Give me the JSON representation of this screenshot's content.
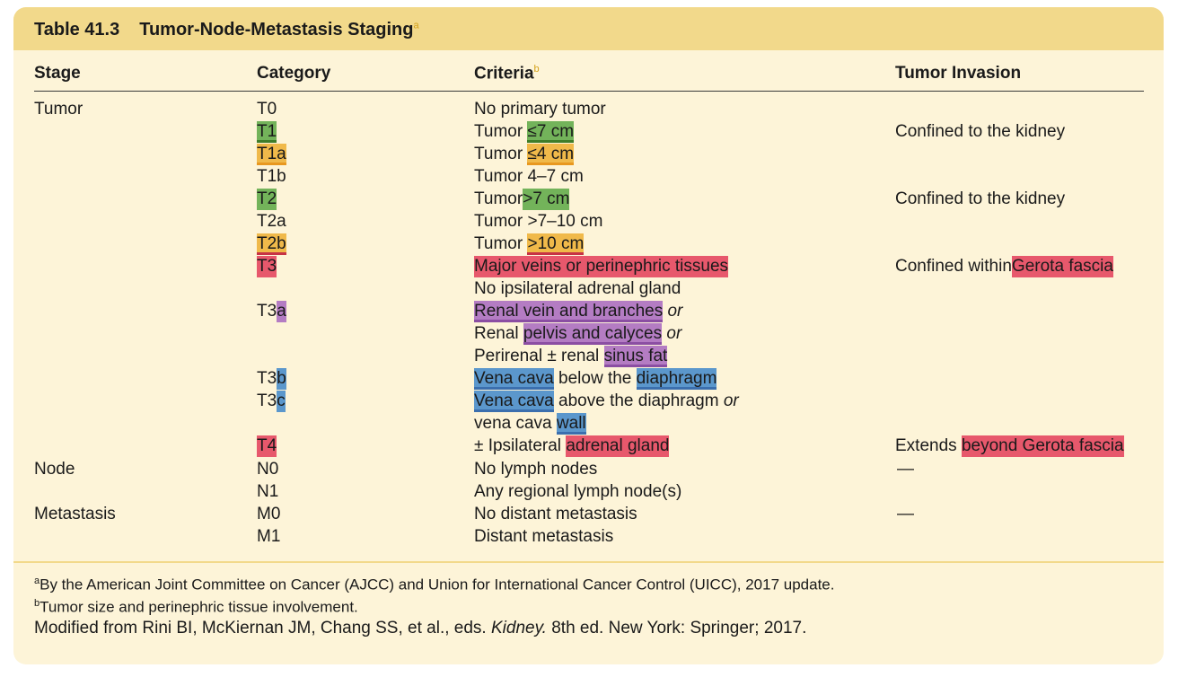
{
  "table_title": {
    "number": "Table 41.3",
    "text": "Tumor-Node-Metastasis Staging",
    "sup": "a"
  },
  "headers": {
    "stage": "Stage",
    "category": "Category",
    "criteria": "Criteria",
    "criteria_sup": "b",
    "invasion": "Tumor Invasion"
  },
  "rows": {
    "r0": {
      "stage": "Tumor",
      "cat": "T0",
      "crit": "No primary tumor"
    },
    "r1": {
      "cat": "T1",
      "crit_pre": "Tumor ",
      "crit_hl": "≤7 cm",
      "inv": "Confined to the kidney"
    },
    "r2": {
      "cat": "T1a",
      "crit_pre": "Tumor ",
      "crit_hl": "≤4 cm"
    },
    "r3": {
      "cat": "T1b",
      "crit": "Tumor 4–7 cm"
    },
    "r4": {
      "cat": "T2",
      "crit_pre": "Tumor",
      "crit_hl": ">7 cm",
      "inv": "Confined to the kidney"
    },
    "r5": {
      "cat": "T2a",
      "crit": "Tumor >7–10 cm"
    },
    "r6": {
      "cat": "T2b",
      "crit_pre": "Tumor ",
      "crit_hl": ">10 cm"
    },
    "r7": {
      "cat": "T3",
      "crit_hl": "Major veins or perinephric tissues",
      "inv_pre": "Confined within",
      "inv_hl": "Gerota fascia"
    },
    "r8": {
      "crit": "No ipsilateral adrenal gland"
    },
    "r9": {
      "cat_pre": "T3",
      "cat_hl": "a",
      "crit_hl": "Renal vein and branches",
      "crit_post": " or"
    },
    "r10": {
      "crit_pre": "Renal ",
      "crit_hl": "pelvis and calyces",
      "crit_post": " or"
    },
    "r11": {
      "crit_pre": "Perirenal ± renal ",
      "crit_hl": "sinus fat"
    },
    "r12": {
      "cat_pre": "T3",
      "cat_hl": "b",
      "crit_hl": "Vena cava",
      "crit_mid": " below the ",
      "crit_hl2": "diaphragm"
    },
    "r13": {
      "cat_pre": "T3",
      "cat_hl": "c",
      "crit_hl": "Vena cava",
      "crit_mid": " above the diaphragm ",
      "crit_post": "or"
    },
    "r14": {
      "crit_pre": "vena cava ",
      "crit_hl": "wall"
    },
    "r15": {
      "cat": "T4",
      "crit_pre": "± Ipsilateral ",
      "crit_hl": "adrenal gland",
      "inv_pre": "Extends ",
      "inv_hl": "beyond Gerota fascia"
    },
    "r16": {
      "stage": "Node",
      "cat": "N0",
      "crit": "No lymph nodes",
      "inv": "—"
    },
    "r17": {
      "cat": "N1",
      "crit": "Any regional lymph node(s)"
    },
    "r18": {
      "stage": "Metastasis",
      "cat": "M0",
      "crit": "No distant metastasis",
      "inv": "—"
    },
    "r19": {
      "cat": "M1",
      "crit": "Distant metastasis"
    }
  },
  "footnotes": {
    "a_mark": "a",
    "a_text": "By the American Joint Committee on Cancer (AJCC) and Union for International Cancer Control (UICC), 2017 update.",
    "b_mark": "b",
    "b_text": "Tumor size and perinephric tissue involvement.",
    "source_pre": "Modified from Rini BI, McKiernan JM, Chang SS, et al., eds. ",
    "source_italic": "Kidney.",
    "source_post": " 8th ed. New York: Springer; 2017."
  },
  "colors": {
    "title_bar": "#f2d98b",
    "background": "#fdf4d8",
    "green": "#73b35a",
    "orange": "#f0b94a",
    "red": "#e7586c",
    "purple": "#b47cc3",
    "blue": "#5b97cc"
  }
}
